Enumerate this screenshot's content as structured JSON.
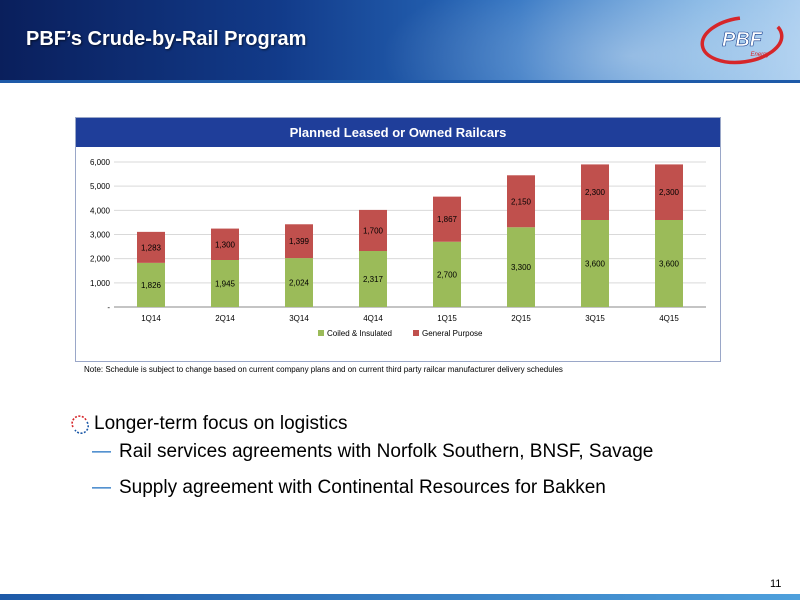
{
  "header": {
    "title": "PBF’s Crude-by-Rail Program",
    "logo_text": "PBF",
    "logo_subtext": "Energy"
  },
  "chart_data": {
    "type": "bar",
    "stacked": true,
    "title": "Planned Leased or Owned Railcars",
    "categories": [
      "1Q14",
      "2Q14",
      "3Q14",
      "4Q14",
      "1Q15",
      "2Q15",
      "3Q15",
      "4Q15"
    ],
    "series": [
      {
        "name": "Coiled & Insulated",
        "color": "#9bbb59",
        "values": [
          1826,
          1945,
          2024,
          2317,
          2700,
          3300,
          3600,
          3600
        ],
        "labels": [
          "1,826",
          "1,945",
          "2,024",
          "2,317",
          "2,700",
          "3,300",
          "3,600",
          "3,600"
        ]
      },
      {
        "name": "General Purpose",
        "color": "#c0504d",
        "values": [
          1283,
          1300,
          1399,
          1700,
          1867,
          2150,
          2300,
          2300
        ],
        "labels": [
          "1,283",
          "1,300",
          "1,399",
          "1,700",
          "1,867",
          "2,150",
          "2,300",
          "2,300"
        ]
      }
    ],
    "ylim": [
      0,
      6000
    ],
    "yticks": [
      0,
      1000,
      2000,
      3000,
      4000,
      5000,
      6000
    ],
    "ytick_labels": [
      "-",
      "1,000",
      "2,000",
      "3,000",
      "4,000",
      "5,000",
      "6,000"
    ],
    "grid": true,
    "legend": "bottom"
  },
  "note": "Note: Schedule is subject to change based on current company plans and on current third party railcar manufacturer delivery schedules",
  "bullets": {
    "main": "Longer-term focus on logistics",
    "dash": "—",
    "sub": [
      "Rail services agreements with Norfolk Southern, BNSF, Savage",
      "Supply agreement with Continental Resources for Bakken"
    ]
  },
  "page_number": "11",
  "colors": {
    "header_dark": "#0a1f5c",
    "header_light": "#a9cdef",
    "chart_title_bg": "#1f3e9a",
    "logo_red": "#d6262a",
    "accent_blue": "#1e6fc0"
  },
  "icons": {
    "bullet": "swirl-bullet-icon",
    "logo": "pbf-logo"
  }
}
